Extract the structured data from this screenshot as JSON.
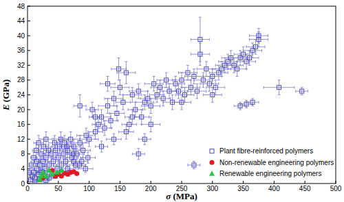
{
  "chart_data": {
    "type": "scatter",
    "x_label": "σ (MPa)",
    "y_label": "E (GPa)",
    "xlim": [
      0,
      500
    ],
    "ylim": [
      0,
      48
    ],
    "xticks": [
      0,
      50,
      100,
      150,
      200,
      250,
      300,
      350,
      400,
      450,
      500
    ],
    "yticks": [
      0,
      4,
      8,
      12,
      16,
      20,
      24,
      28,
      32,
      36,
      40,
      44,
      48
    ],
    "grid": false,
    "legend": "lower right",
    "series": [
      {
        "name": "Plant fibre-reinforced polymers",
        "color": "#4a4ac8",
        "marker": "square",
        "x": [
          5,
          8,
          10,
          12,
          15,
          18,
          20,
          22,
          25,
          28,
          30,
          32,
          35,
          38,
          40,
          42,
          45,
          48,
          50,
          52,
          55,
          58,
          60,
          62,
          65,
          68,
          70,
          72,
          75,
          78,
          80,
          85,
          88,
          90,
          95,
          98,
          100,
          3,
          6,
          10,
          14,
          18,
          22,
          26,
          30,
          34,
          44,
          54,
          64,
          74,
          84,
          94,
          15,
          25,
          35,
          45,
          55,
          65,
          75,
          30,
          12,
          20,
          105,
          110,
          115,
          120,
          125,
          130,
          135,
          140,
          145,
          148,
          150,
          155,
          160,
          165,
          170,
          175,
          180,
          185,
          190,
          195,
          200,
          205,
          210,
          215,
          220,
          225,
          230,
          120,
          140,
          160,
          180,
          200,
          85,
          110,
          130,
          170,
          190,
          235,
          240,
          245,
          250,
          255,
          260,
          265,
          270,
          275,
          280,
          280,
          285,
          290,
          295,
          300,
          305,
          310,
          315,
          320,
          325,
          330,
          335,
          340,
          345,
          350,
          355,
          360,
          365,
          370,
          375,
          375,
          345,
          355,
          365,
          408,
          445,
          270,
          250,
          300
        ],
        "values": [
          1,
          2,
          3,
          1.5,
          4,
          2.5,
          5,
          3,
          6,
          4,
          7,
          2,
          5,
          8,
          3,
          6,
          9,
          4,
          7,
          10,
          5,
          8,
          11,
          6,
          9,
          3,
          12,
          7,
          10,
          5,
          8,
          11,
          6,
          9,
          13,
          7,
          12,
          3,
          5,
          7,
          9,
          11,
          8,
          10,
          12,
          9,
          11,
          12,
          10,
          8,
          5,
          4,
          6,
          3,
          1.5,
          2,
          3,
          4,
          6,
          0.8,
          0.5,
          1,
          20,
          14,
          16,
          18,
          15,
          21,
          17,
          23,
          19,
          31,
          26,
          22,
          30,
          16,
          24,
          20,
          25,
          18,
          22,
          23,
          21,
          27,
          24,
          26,
          23,
          28,
          25,
          10,
          12,
          14,
          8,
          16,
          21,
          18,
          27,
          18,
          12,
          22,
          27,
          25,
          28,
          24,
          30,
          26,
          29,
          25,
          39,
          35,
          28,
          31,
          27,
          29,
          26,
          30,
          31,
          32,
          33,
          34,
          32,
          31,
          34,
          35,
          33,
          34,
          36,
          37,
          39,
          40,
          21,
          21.5,
          22,
          26,
          25,
          5,
          22,
          24
        ],
        "x_errors": [
          3,
          4,
          5,
          4,
          6,
          5,
          8,
          6,
          8,
          7,
          10,
          6,
          8,
          10,
          8,
          9,
          12,
          8,
          10,
          12,
          9,
          10,
          12,
          10,
          12,
          8,
          15,
          10,
          12,
          10,
          12,
          15,
          10,
          12,
          15,
          12,
          15,
          2,
          3,
          5,
          6,
          8,
          6,
          8,
          10,
          8,
          10,
          12,
          10,
          10,
          10,
          12,
          5,
          6,
          6,
          8,
          8,
          10,
          10,
          5,
          3,
          4,
          10,
          12,
          10,
          15,
          12,
          15,
          12,
          15,
          12,
          12,
          15,
          12,
          15,
          12,
          15,
          12,
          15,
          12,
          15,
          12,
          15,
          15,
          12,
          15,
          12,
          15,
          15,
          10,
          12,
          12,
          10,
          15,
          10,
          10,
          12,
          12,
          10,
          15,
          15,
          15,
          15,
          15,
          15,
          15,
          15,
          15,
          15,
          15,
          15,
          15,
          15,
          15,
          15,
          15,
          15,
          15,
          15,
          15,
          15,
          15,
          15,
          15,
          15,
          15,
          15,
          15,
          15,
          15,
          10,
          10,
          10,
          25,
          10,
          10,
          15,
          15
        ],
        "errors": [
          0.5,
          0.8,
          1,
          0.5,
          1,
          0.8,
          1.5,
          1,
          1.5,
          1,
          2,
          0.5,
          1,
          2,
          1,
          1.5,
          2,
          1,
          1.5,
          2,
          1,
          1.5,
          2,
          1,
          2,
          1,
          2,
          1.5,
          2,
          1,
          1.5,
          2,
          1,
          2,
          2,
          1.5,
          2,
          1,
          1,
          1.5,
          2,
          2,
          1.5,
          2,
          2,
          1.5,
          2,
          2,
          2,
          1.5,
          1,
          1,
          1,
          0.8,
          0.5,
          0.5,
          0.8,
          1,
          1,
          0.3,
          0.2,
          0.3,
          2,
          2,
          2,
          2,
          2,
          2,
          2,
          2,
          2,
          3,
          2,
          2,
          3,
          2,
          2,
          2,
          2,
          2,
          2,
          2,
          2,
          2,
          2,
          2,
          2,
          2,
          2,
          1.5,
          1.5,
          2,
          1.5,
          2,
          3,
          2,
          2,
          2,
          1.5,
          2,
          2,
          2,
          2,
          2,
          2,
          2,
          2,
          2,
          6,
          3,
          2,
          2,
          2,
          2,
          2,
          2,
          2,
          2,
          2,
          2,
          2,
          2,
          2,
          2,
          2,
          2,
          2,
          2,
          2,
          2,
          1,
          1,
          1,
          2,
          1,
          1,
          2,
          2
        ]
      },
      {
        "name": "Non-renewable engineering polymers",
        "color": "#e8141e",
        "marker": "circle",
        "x": [
          40,
          45,
          50,
          55,
          60,
          65,
          70,
          75,
          80,
          25
        ],
        "values": [
          3.5,
          2,
          2.5,
          2,
          2.8,
          2.5,
          3,
          3.2,
          2.7,
          1.5
        ],
        "x_errors": [
          3,
          3,
          3,
          3,
          3,
          3,
          3,
          3,
          3,
          3
        ],
        "errors": [
          0.3,
          0.3,
          0.3,
          0.3,
          0.3,
          0.3,
          0.3,
          0.3,
          0.3,
          0.3
        ]
      },
      {
        "name": "Renewable engineering polymers",
        "color": "#22c93a",
        "marker": "triangle",
        "x": [
          20,
          25,
          30,
          35,
          40,
          48,
          55,
          22
        ],
        "values": [
          1,
          3,
          2,
          3.5,
          2.5,
          3,
          3.5,
          2
        ],
        "x_errors": [
          3,
          3,
          3,
          3,
          3,
          3,
          3,
          3
        ],
        "errors": [
          0.3,
          0.3,
          0.3,
          0.3,
          0.3,
          0.3,
          0.3,
          0.3
        ]
      }
    ]
  }
}
